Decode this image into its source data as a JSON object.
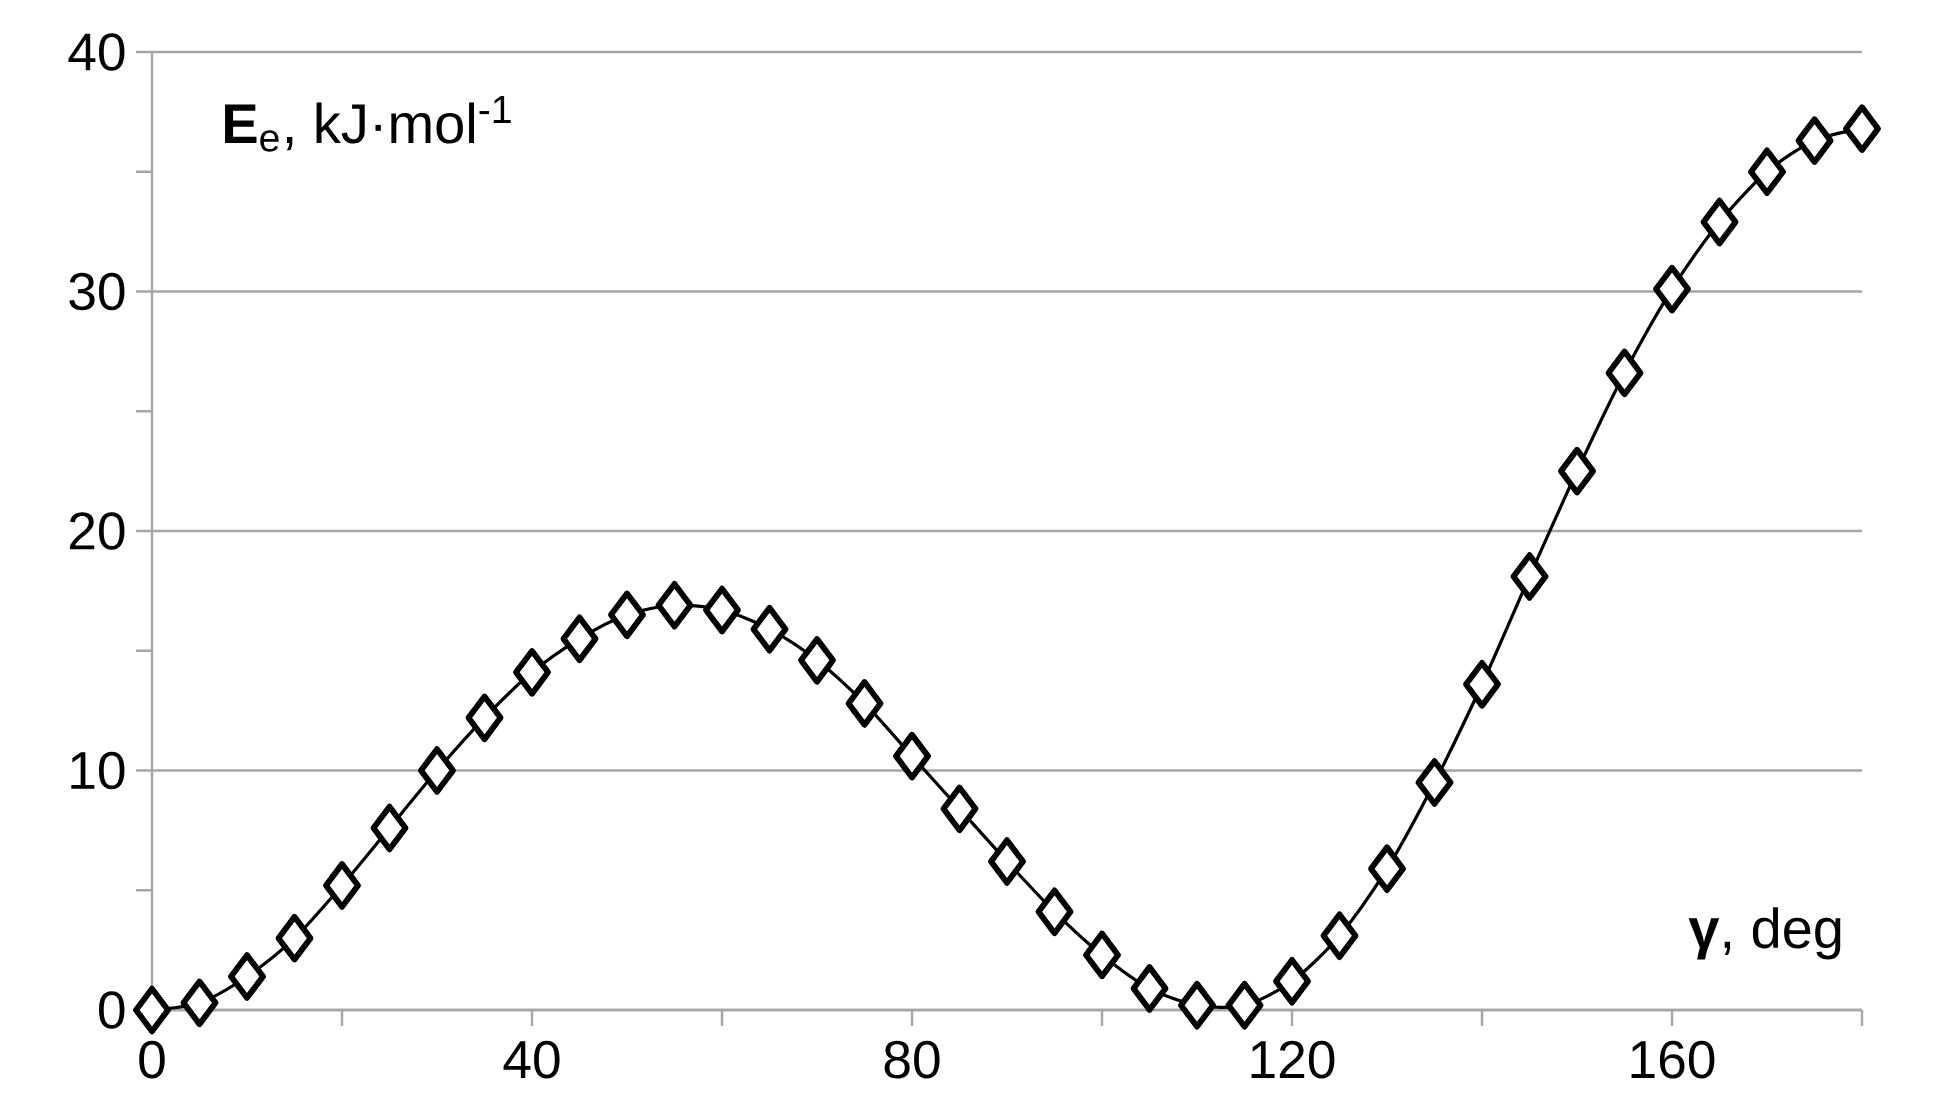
{
  "chart_data": {
    "type": "line",
    "xlabel": "**γ**, deg",
    "ylabel": "**E**$_{e}$, kJ·mol$^{-1}$",
    "x": [
      0,
      5,
      10,
      15,
      20,
      25,
      30,
      35,
      40,
      45,
      50,
      55,
      60,
      65,
      70,
      75,
      80,
      85,
      90,
      95,
      100,
      105,
      110,
      115,
      120,
      125,
      130,
      135,
      140,
      145,
      150,
      155,
      160,
      165,
      170,
      175,
      180
    ],
    "series": [
      {
        "color": "#000000",
        "values": [
          0,
          0.3,
          1.4,
          3.0,
          5.2,
          7.6,
          10.0,
          12.2,
          14.1,
          15.5,
          16.5,
          16.9,
          16.7,
          15.9,
          14.6,
          12.8,
          10.6,
          8.4,
          6.2,
          4.1,
          2.3,
          0.9,
          0.2,
          0.2,
          1.2,
          3.1,
          5.9,
          9.5,
          13.6,
          18.1,
          22.5,
          26.6,
          30.1,
          32.9,
          35.0,
          36.3,
          36.8
        ]
      }
    ],
    "xlim": [
      0,
      180
    ],
    "xticks": [
      0,
      {
        "value": 20,
        "label": null
      },
      40,
      {
        "value": 60,
        "label": null
      },
      80,
      {
        "value": 100,
        "label": null
      },
      120,
      {
        "value": 140,
        "label": null
      },
      160,
      {
        "value": 180,
        "label": null
      }
    ],
    "ylim": [
      0,
      40
    ],
    "yticks": [
      0,
      {
        "value": 5,
        "label": null
      },
      10,
      {
        "value": 15,
        "label": null
      },
      20,
      {
        "value": 25,
        "label": null
      },
      30,
      {
        "value": 35,
        "label": null
      },
      40
    ],
    "grid": "y",
    "marker": "diamond",
    "line_style": "solid"
  }
}
